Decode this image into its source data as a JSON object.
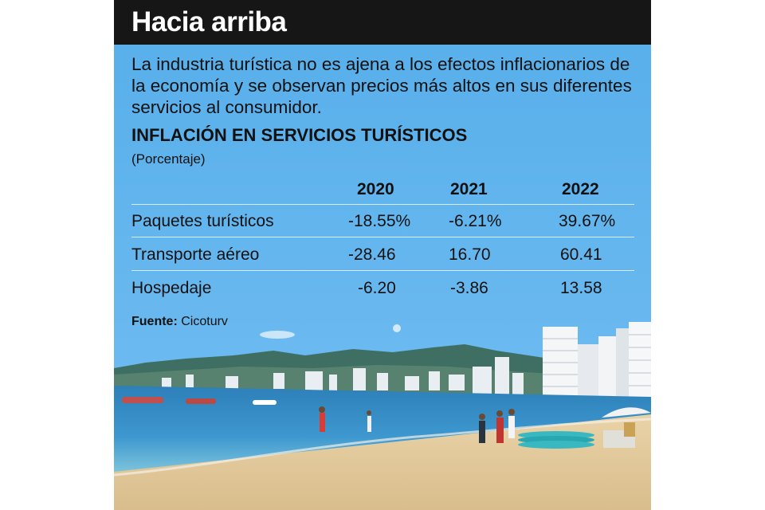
{
  "title": "Hacia arriba",
  "intro": "La industria turística no es ajena a los efectos inflacionarios de la economía y se observan precios más altos en sus diferentes servicios al consumidor.",
  "chart_data": {
    "type": "table",
    "title": "INFLACIÓN EN SERVICIOS TURÍSTICOS",
    "subtitle": "(Porcentaje)",
    "columns": [
      "2020",
      "2021",
      "2022"
    ],
    "rows": [
      {
        "label": "Paquetes turísticos",
        "display": [
          "-18.55%",
          "-6.21%",
          "39.67%"
        ],
        "values": [
          -18.55,
          -6.21,
          39.67
        ]
      },
      {
        "label": "Transporte aéreo",
        "display": [
          "-28.46",
          "16.70",
          "60.41"
        ],
        "values": [
          -28.46,
          16.7,
          60.41
        ]
      },
      {
        "label": "Hospedaje",
        "display": [
          "-6.20",
          "-3.86",
          "13.58"
        ],
        "values": [
          -6.2,
          -3.86,
          13.58
        ]
      }
    ]
  },
  "source": {
    "label": "Fuente:",
    "text": "Cicoturv"
  },
  "photo": {
    "description_icon": "beach-photo"
  }
}
